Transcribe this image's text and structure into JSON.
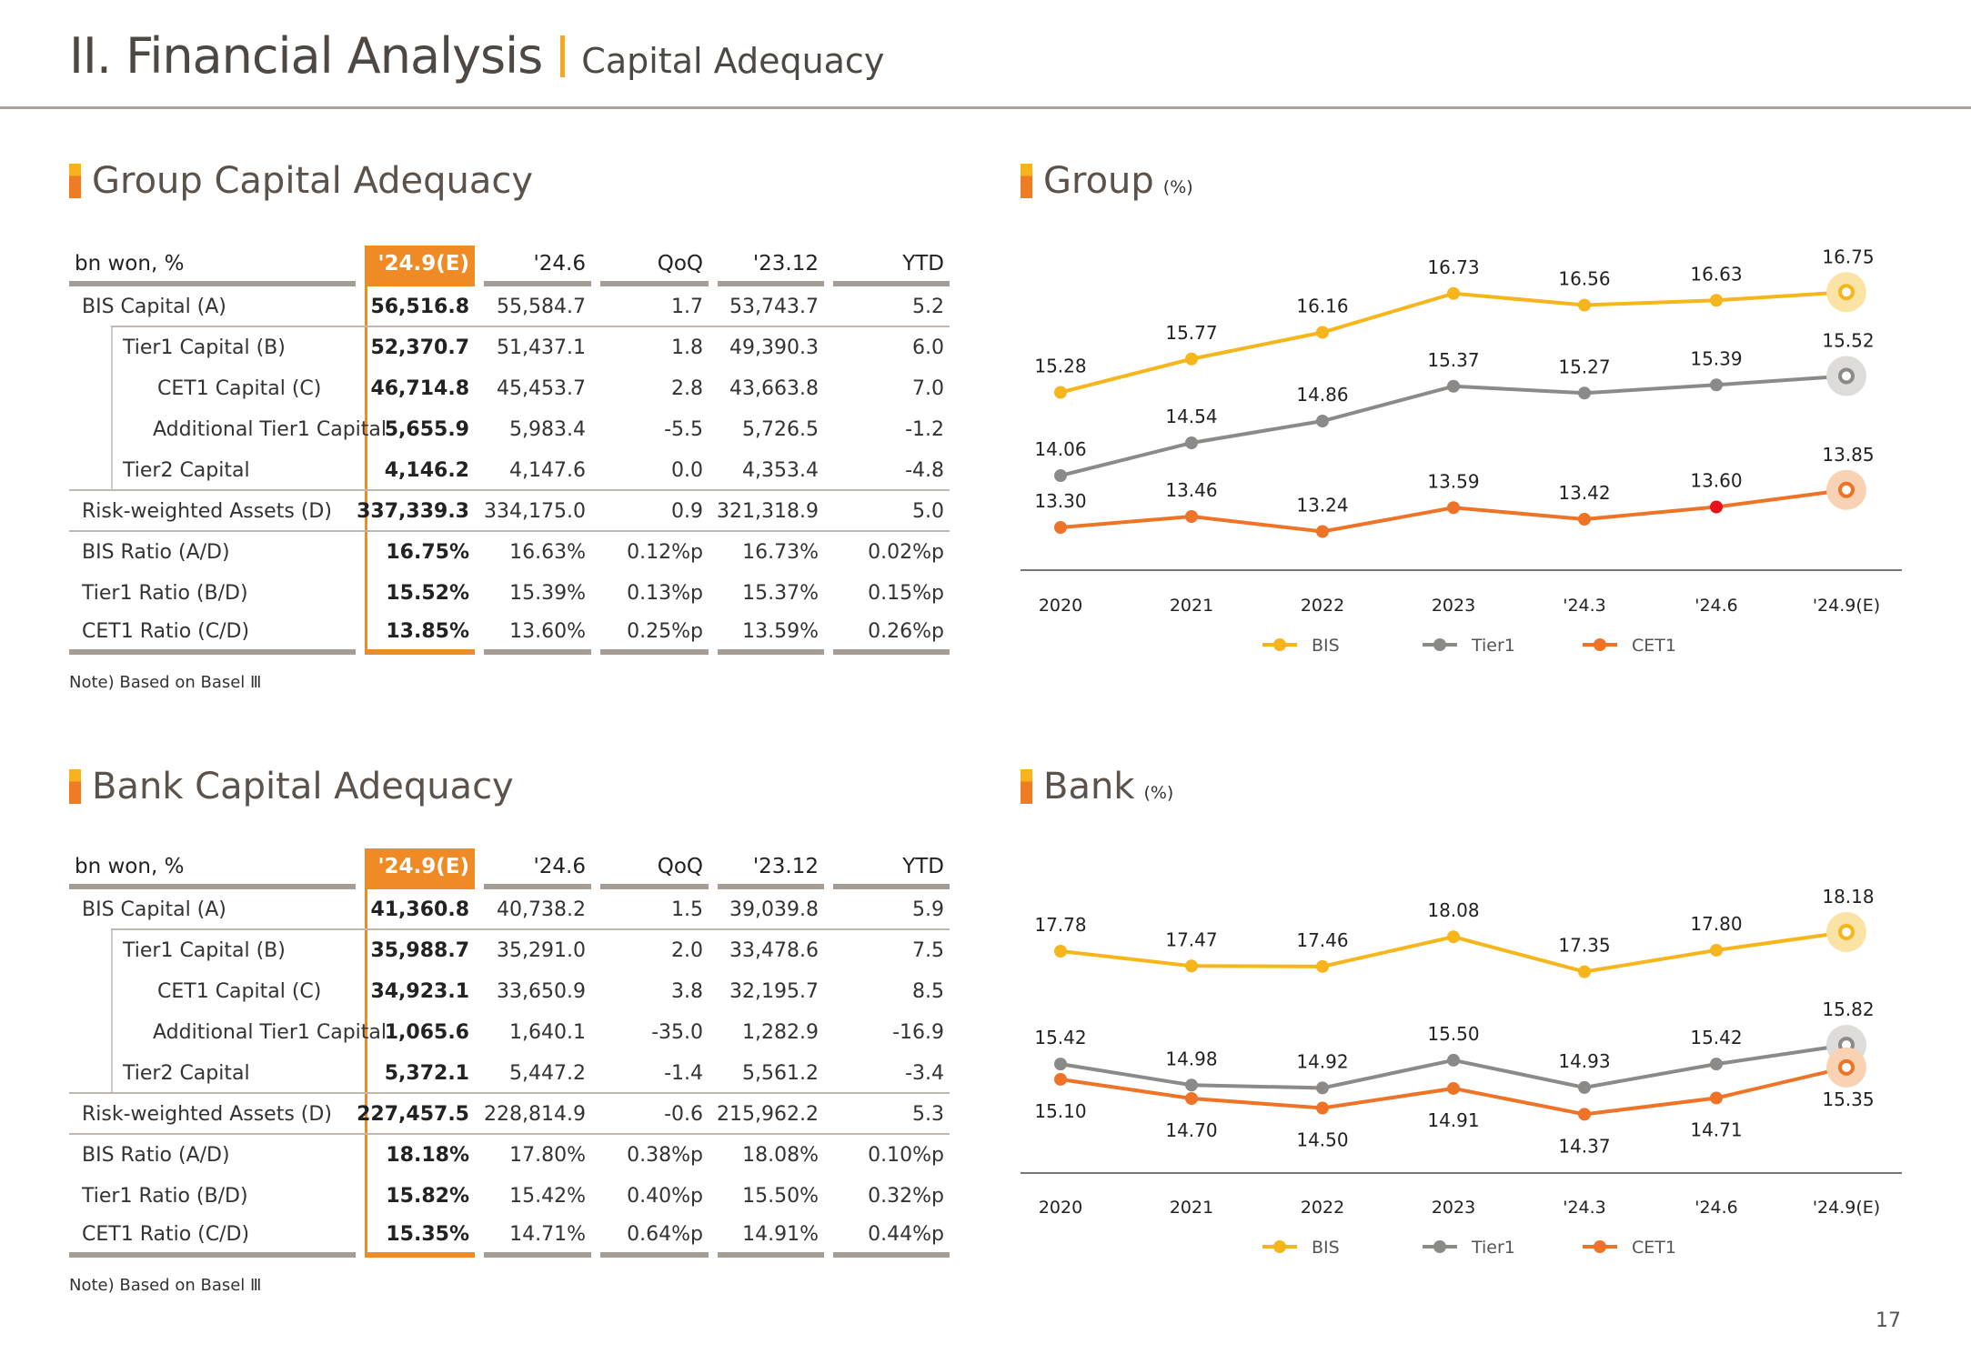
{
  "header": {
    "title": "II. Financial Analysis",
    "subtitle": "Capital Adequacy"
  },
  "colors": {
    "accent": "#f08a24",
    "bis": "#f5b51b",
    "tier1": "#8c8a88",
    "cet1": "#ee7326",
    "highlight": "#e8101a"
  },
  "group_table": {
    "title": "Group Capital Adequacy",
    "columns": [
      "bn won, %",
      "'24.9(E)",
      "'24.6",
      "QoQ",
      "'23.12",
      "YTD"
    ],
    "rows": [
      {
        "label": "BIS Capital (A)",
        "values": [
          "56,516.8",
          "55,584.7",
          "1.7",
          "53,743.7",
          "5.2"
        ]
      },
      {
        "label": "Tier1 Capital (B)",
        "values": [
          "52,370.7",
          "51,437.1",
          "1.8",
          "49,390.3",
          "6.0"
        ]
      },
      {
        "label": "CET1 Capital (C)",
        "values": [
          "46,714.8",
          "45,453.7",
          "2.8",
          "43,663.8",
          "7.0"
        ]
      },
      {
        "label": "Additional Tier1 Capital",
        "values": [
          "5,655.9",
          "5,983.4",
          "-5.5",
          "5,726.5",
          "-1.2"
        ]
      },
      {
        "label": "Tier2 Capital",
        "values": [
          "4,146.2",
          "4,147.6",
          "0.0",
          "4,353.4",
          "-4.8"
        ]
      },
      {
        "label": "Risk-weighted Assets (D)",
        "values": [
          "337,339.3",
          "334,175.0",
          "0.9",
          "321,318.9",
          "5.0"
        ]
      },
      {
        "label": "BIS Ratio (A/D)",
        "values": [
          "16.75%",
          "16.63%",
          "0.12%p",
          "16.73%",
          "0.02%p"
        ]
      },
      {
        "label": "Tier1 Ratio (B/D)",
        "values": [
          "15.52%",
          "15.39%",
          "0.13%p",
          "15.37%",
          "0.15%p"
        ]
      },
      {
        "label": "CET1 Ratio (C/D)",
        "values": [
          "13.85%",
          "13.60%",
          "0.25%p",
          "13.59%",
          "0.26%p"
        ]
      }
    ],
    "note": "Note) Based on Basel Ⅲ"
  },
  "bank_table": {
    "title": "Bank Capital Adequacy",
    "columns": [
      "bn won, %",
      "'24.9(E)",
      "'24.6",
      "QoQ",
      "'23.12",
      "YTD"
    ],
    "rows": [
      {
        "label": "BIS Capital (A)",
        "values": [
          "41,360.8",
          "40,738.2",
          "1.5",
          "39,039.8",
          "5.9"
        ]
      },
      {
        "label": "Tier1 Capital (B)",
        "values": [
          "35,988.7",
          "35,291.0",
          "2.0",
          "33,478.6",
          "7.5"
        ]
      },
      {
        "label": "CET1 Capital (C)",
        "values": [
          "34,923.1",
          "33,650.9",
          "3.8",
          "32,195.7",
          "8.5"
        ]
      },
      {
        "label": "Additional Tier1 Capital",
        "values": [
          "1,065.6",
          "1,640.1",
          "-35.0",
          "1,282.9",
          "-16.9"
        ]
      },
      {
        "label": "Tier2 Capital",
        "values": [
          "5,372.1",
          "5,447.2",
          "-1.4",
          "5,561.2",
          "-3.4"
        ]
      },
      {
        "label": "Risk-weighted Assets (D)",
        "values": [
          "227,457.5",
          "228,814.9",
          "-0.6",
          "215,962.2",
          "5.3"
        ]
      },
      {
        "label": "BIS Ratio (A/D)",
        "values": [
          "18.18%",
          "17.80%",
          "0.38%p",
          "18.08%",
          "0.10%p"
        ]
      },
      {
        "label": "Tier1 Ratio (B/D)",
        "values": [
          "15.82%",
          "15.42%",
          "0.40%p",
          "15.50%",
          "0.32%p"
        ]
      },
      {
        "label": "CET1 Ratio (C/D)",
        "values": [
          "15.35%",
          "14.71%",
          "0.64%p",
          "14.91%",
          "0.44%p"
        ]
      }
    ],
    "note": "Note) Based on Basel Ⅲ"
  },
  "chart_data": [
    {
      "type": "line",
      "title": "Group",
      "unit": "(%)",
      "categories": [
        "2020",
        "2021",
        "2022",
        "2023",
        "'24.3",
        "'24.6",
        "'24.9(E)"
      ],
      "series": [
        {
          "name": "BIS",
          "values": [
            15.28,
            15.77,
            16.16,
            16.73,
            16.56,
            16.63,
            16.75
          ]
        },
        {
          "name": "Tier1",
          "values": [
            14.06,
            14.54,
            14.86,
            15.37,
            15.27,
            15.39,
            15.52
          ]
        },
        {
          "name": "CET1",
          "values": [
            13.3,
            13.46,
            13.24,
            13.59,
            13.42,
            13.6,
            13.85
          ]
        }
      ],
      "legend": "bottom",
      "grid": false
    },
    {
      "type": "line",
      "title": "Bank",
      "unit": "(%)",
      "categories": [
        "2020",
        "2021",
        "2022",
        "2023",
        "'24.3",
        "'24.6",
        "'24.9(E)"
      ],
      "series": [
        {
          "name": "BIS",
          "values": [
            17.78,
            17.47,
            17.46,
            18.08,
            17.35,
            17.8,
            18.18
          ]
        },
        {
          "name": "Tier1",
          "values": [
            15.42,
            14.98,
            14.92,
            15.5,
            14.93,
            15.42,
            15.82
          ]
        },
        {
          "name": "CET1",
          "values": [
            15.1,
            14.7,
            14.5,
            14.91,
            14.37,
            14.71,
            15.35
          ]
        }
      ],
      "legend": "bottom",
      "grid": false
    }
  ],
  "page_number": "17"
}
